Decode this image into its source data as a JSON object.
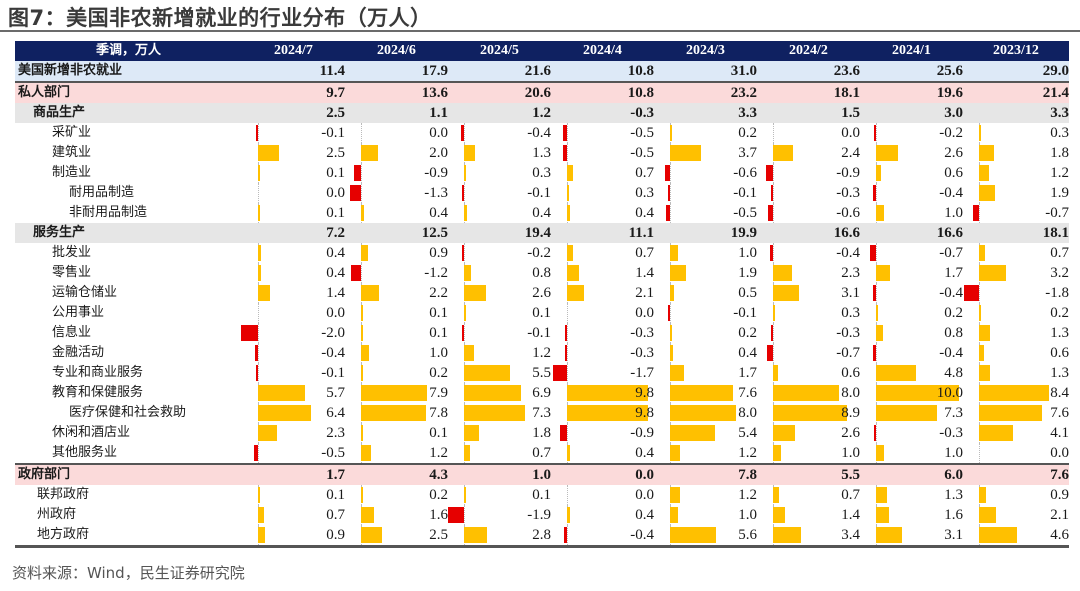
{
  "title": "图7：美国非农新增就业的行业分布（万人）",
  "source": "资料来源：Wind，民生证券研究院",
  "colors": {
    "header_bg": "#0f2161",
    "positive_bar": "#ffc000",
    "negative_bar": "#e60000",
    "total_row": "#dde9f7",
    "sector_row": "#fbdada",
    "subsector_row": "#e6e6e6"
  },
  "chart_data": {
    "type": "table",
    "title": "图7：美国非农新增就业的行业分布（万人）",
    "unit_label": "季调，万人",
    "columns": [
      "2024/7",
      "2024/6",
      "2024/5",
      "2024/4",
      "2024/3",
      "2024/2",
      "2024/1",
      "2023/12"
    ],
    "rows": [
      {
        "label": "美国新增非农就业",
        "level": "total",
        "bars": false,
        "values": [
          11.4,
          17.9,
          21.6,
          10.8,
          31.0,
          23.6,
          25.6,
          29.0
        ]
      },
      {
        "label": "私人部门",
        "level": "sector",
        "bars": false,
        "values": [
          9.7,
          13.6,
          20.6,
          10.8,
          23.2,
          18.1,
          19.6,
          21.4
        ]
      },
      {
        "label": "商品生产",
        "level": "subsector",
        "bars": false,
        "values": [
          2.5,
          1.1,
          1.2,
          -0.3,
          3.3,
          1.5,
          3.0,
          3.3
        ]
      },
      {
        "label": "采矿业",
        "level": "industry",
        "bars": true,
        "values": [
          -0.1,
          0.0,
          -0.4,
          -0.5,
          0.2,
          0.0,
          -0.2,
          0.3
        ]
      },
      {
        "label": "建筑业",
        "level": "industry",
        "bars": true,
        "values": [
          2.5,
          2.0,
          1.3,
          -0.5,
          3.7,
          2.4,
          2.6,
          1.8
        ]
      },
      {
        "label": "制造业",
        "level": "industry",
        "bars": true,
        "values": [
          0.1,
          -0.9,
          0.3,
          0.7,
          -0.6,
          -0.9,
          0.6,
          1.2
        ]
      },
      {
        "label": "耐用品制造",
        "level": "sub-industry",
        "bars": true,
        "values": [
          0.0,
          -1.3,
          -0.1,
          0.3,
          -0.1,
          -0.3,
          -0.4,
          1.9
        ]
      },
      {
        "label": "非耐用品制造",
        "level": "sub-industry",
        "bars": true,
        "values": [
          0.1,
          0.4,
          0.4,
          0.4,
          -0.5,
          -0.6,
          1.0,
          -0.7
        ]
      },
      {
        "label": "服务生产",
        "level": "subsector",
        "bars": false,
        "values": [
          7.2,
          12.5,
          19.4,
          11.1,
          19.9,
          16.6,
          16.6,
          18.1
        ]
      },
      {
        "label": "批发业",
        "level": "industry",
        "bars": true,
        "values": [
          0.4,
          0.9,
          -0.2,
          0.7,
          1.0,
          -0.4,
          -0.7,
          0.7
        ]
      },
      {
        "label": "零售业",
        "level": "industry",
        "bars": true,
        "values": [
          0.4,
          -1.2,
          0.8,
          1.4,
          1.9,
          2.3,
          1.7,
          3.2
        ]
      },
      {
        "label": "运输仓储业",
        "level": "industry",
        "bars": true,
        "values": [
          1.4,
          2.2,
          2.6,
          2.1,
          0.5,
          3.1,
          -0.4,
          -1.8
        ]
      },
      {
        "label": "公用事业",
        "level": "industry",
        "bars": true,
        "values": [
          0.0,
          0.1,
          0.1,
          0.0,
          -0.1,
          0.3,
          0.2,
          0.2
        ]
      },
      {
        "label": "信息业",
        "level": "industry",
        "bars": true,
        "values": [
          -2.0,
          0.1,
          -0.1,
          -0.3,
          0.2,
          -0.3,
          0.8,
          1.3
        ]
      },
      {
        "label": "金融活动",
        "level": "industry",
        "bars": true,
        "values": [
          -0.4,
          1.0,
          1.2,
          -0.3,
          0.4,
          -0.7,
          -0.4,
          0.6
        ]
      },
      {
        "label": "专业和商业服务",
        "level": "industry",
        "bars": true,
        "values": [
          -0.1,
          0.2,
          5.5,
          -1.7,
          1.7,
          0.6,
          4.8,
          1.3
        ]
      },
      {
        "label": "教育和保健服务",
        "level": "industry",
        "bars": true,
        "values": [
          5.7,
          7.9,
          6.9,
          9.8,
          7.6,
          8.0,
          10.0,
          8.4
        ]
      },
      {
        "label": "医疗保健和社会救助",
        "level": "sub-industry",
        "bars": true,
        "values": [
          6.4,
          7.8,
          7.3,
          9.8,
          8.0,
          8.9,
          7.3,
          7.6
        ]
      },
      {
        "label": "休闲和酒店业",
        "level": "industry",
        "bars": true,
        "values": [
          2.3,
          0.1,
          1.8,
          -0.9,
          5.4,
          2.6,
          -0.3,
          4.1
        ]
      },
      {
        "label": "其他服务业",
        "level": "industry",
        "bars": true,
        "values": [
          -0.5,
          1.2,
          0.7,
          0.4,
          1.2,
          1.0,
          1.0,
          0.0
        ]
      },
      {
        "label": "政府部门",
        "level": "sector",
        "bars": false,
        "values": [
          1.7,
          4.3,
          1.0,
          0.0,
          7.8,
          5.5,
          6.0,
          7.6
        ]
      },
      {
        "label": "联邦政府",
        "level": "gov-industry",
        "bars": true,
        "values": [
          0.1,
          0.2,
          0.1,
          0.0,
          1.2,
          0.7,
          1.3,
          0.9
        ]
      },
      {
        "label": "州政府",
        "level": "gov-industry",
        "bars": true,
        "values": [
          0.7,
          1.6,
          -1.9,
          0.4,
          1.0,
          1.4,
          1.6,
          2.1
        ]
      },
      {
        "label": "地方政府",
        "level": "gov-industry",
        "bars": true,
        "values": [
          0.9,
          2.5,
          2.8,
          -0.4,
          5.6,
          3.4,
          3.1,
          4.6
        ]
      }
    ]
  }
}
